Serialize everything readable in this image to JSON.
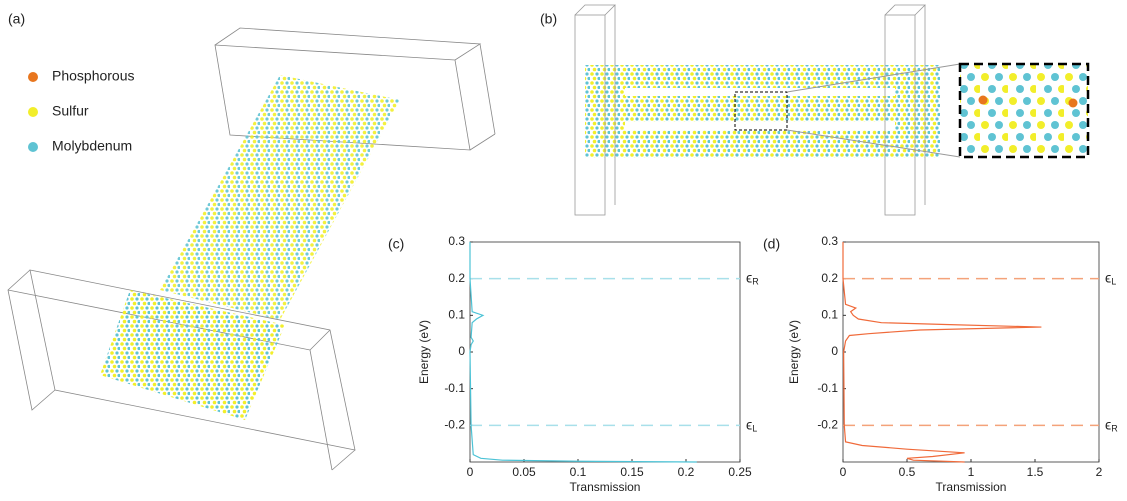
{
  "panel_labels": [
    "(a)",
    "(b)"
  ],
  "legend": [
    {
      "name": "Phosphorous",
      "color": "#e8761e"
    },
    {
      "name": "Sulfur",
      "color": "#f2ee2a"
    },
    {
      "name": "Molybdenum",
      "color": "#5fc3d3"
    }
  ],
  "chart_data": [
    {
      "type": "line",
      "panel": "(c)",
      "xlabel": "Transmission",
      "ylabel": "Energy (eV)",
      "xlim": [
        0,
        0.25
      ],
      "xticks": [
        0,
        0.05,
        0.1,
        0.15,
        0.2,
        0.25
      ],
      "ylim": [
        -0.3,
        0.3
      ],
      "yticks": [
        -0.2,
        -0.1,
        0,
        0.1,
        0.2,
        0.3
      ],
      "hlines": [
        {
          "value": 0.2,
          "label": "ϵ",
          "sub": "R"
        },
        {
          "value": -0.2,
          "label": "ϵ",
          "sub": "L"
        }
      ],
      "hline_color": "#a8e0ea",
      "series": [
        {
          "color": "#4cc3d6",
          "x": [
            0.21,
            0.1,
            0.03,
            0.01,
            0.003,
            0.001,
            0,
            0.001,
            0.003,
            0.001,
            0.002,
            0.006,
            0.012,
            0.002,
            0,
            0
          ],
          "y": [
            -0.3,
            -0.298,
            -0.295,
            -0.29,
            -0.28,
            -0.2,
            0,
            0.02,
            0.03,
            0.04,
            0.08,
            0.09,
            0.1,
            0.11,
            0.2,
            0.3
          ]
        }
      ]
    },
    {
      "type": "line",
      "panel": "(d)",
      "xlabel": "Transmission",
      "ylabel": "Energy (eV)",
      "xlim": [
        0,
        2
      ],
      "xticks": [
        0,
        0.5,
        1,
        1.5,
        2
      ],
      "ylim": [
        -0.3,
        0.3
      ],
      "yticks": [
        -0.2,
        -0.1,
        0,
        0.1,
        0.2,
        0.3
      ],
      "hlines": [
        {
          "value": 0.2,
          "label": "ϵ",
          "sub": "L"
        },
        {
          "value": -0.2,
          "label": "ϵ",
          "sub": "R"
        }
      ],
      "hline_color": "#f4a27a",
      "series": [
        {
          "color": "#f06a3a",
          "x": [
            0.95,
            0.55,
            0.5,
            0.7,
            0.95,
            0.5,
            0.15,
            0.02,
            0.01,
            0.005,
            0.02,
            0.05,
            0.2,
            0.6,
            1.55,
            0.8,
            0.3,
            0.12,
            0.08,
            0.06,
            0.1,
            0.02,
            0,
            0
          ],
          "y": [
            -0.3,
            -0.295,
            -0.29,
            -0.285,
            -0.275,
            -0.265,
            -0.255,
            -0.245,
            -0.2,
            0,
            0.03,
            0.045,
            0.05,
            0.06,
            0.068,
            0.075,
            0.08,
            0.09,
            0.1,
            0.11,
            0.12,
            0.13,
            0.2,
            0.3
          ]
        }
      ]
    }
  ]
}
